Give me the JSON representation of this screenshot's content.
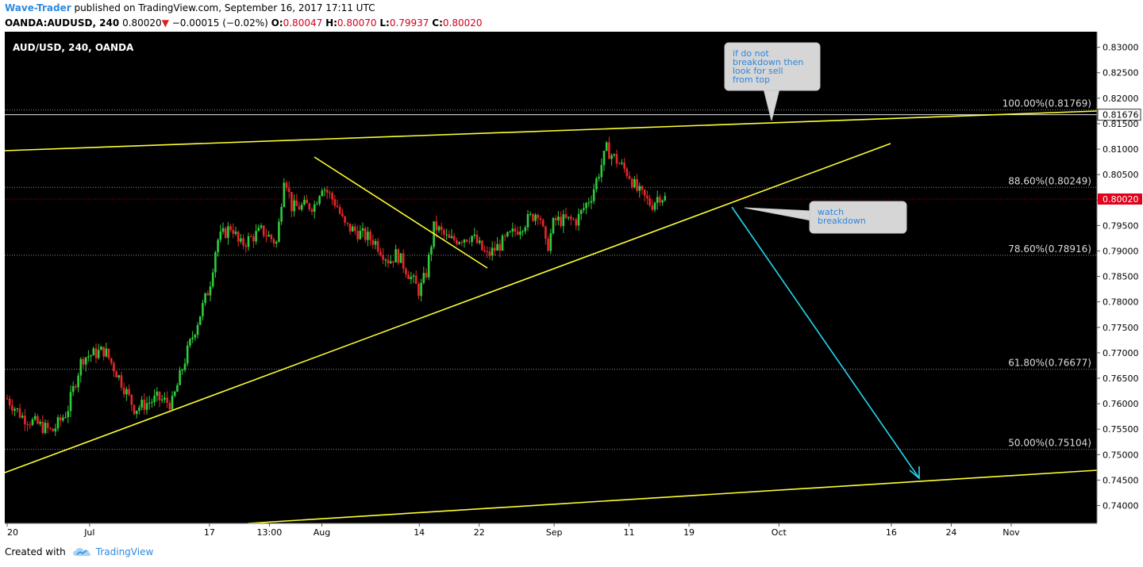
{
  "header": {
    "author": "Wave-Trader",
    "published": "published on TradingView.com, September 16, 2017 17:11 UTC",
    "symbol": "OANDA:AUDUSD, 240",
    "last": "0.80020",
    "arrow": "▼",
    "change": "−0.00015 (−0.02%)",
    "o_label": "O:",
    "o_value": "0.80047",
    "h_label": "H:",
    "h_value": "0.80070",
    "l_label": "L:",
    "l_value": "0.79937",
    "c_label": "C:",
    "c_value": "0.80020"
  },
  "footer": {
    "created_with": "Created with",
    "brand": "TradingView"
  },
  "chart_data": {
    "type": "candlestick",
    "title": "AUD/USD, 240, OANDA",
    "ylim": [
      0.7365,
      0.8315
    ],
    "y_ticks": [
      "0.83000",
      "0.82500",
      "0.82000",
      "0.81500",
      "0.81000",
      "0.80500",
      "0.80000",
      "0.79500",
      "0.79000",
      "0.78500",
      "0.78000",
      "0.77500",
      "0.77000",
      "0.76500",
      "0.76000",
      "0.75500",
      "0.75000",
      "0.74500",
      "0.74000"
    ],
    "x_ticks": [
      "20",
      "Jul",
      "17",
      "13:00",
      "Aug",
      "14",
      "22",
      "Sep",
      "11",
      "19",
      "Oct",
      "16",
      "24",
      "Nov"
    ],
    "last_price_label": "0.80020",
    "upper_level_label": "0.81676",
    "fib_levels": [
      {
        "label": "100.00%(0.81769)",
        "price": 0.81769
      },
      {
        "label": "88.60%(0.80249)",
        "price": 0.80249
      },
      {
        "label": "78.60%(0.78916)",
        "price": 0.78916
      },
      {
        "label": "61.80%(0.76677)",
        "price": 0.76677
      },
      {
        "label": "50.00%(0.75104)",
        "price": 0.75104
      }
    ],
    "callouts": [
      {
        "text": "if do not breakdown then look for sell from top"
      },
      {
        "text": "watch breakdown"
      }
    ],
    "price_path": [
      [
        "Jun 20",
        0.761
      ],
      [
        "Jun 22",
        0.7575
      ],
      [
        "Jun 26",
        0.7545
      ],
      [
        "Jun 28",
        0.7585
      ],
      [
        "Jun 30",
        0.769
      ],
      [
        "Jul 3",
        0.7705
      ],
      [
        "Jul 5",
        0.765
      ],
      [
        "Jul 7",
        0.759
      ],
      [
        "Jul 10",
        0.761
      ],
      [
        "Jul 12",
        0.76
      ],
      [
        "Jul 14",
        0.77
      ],
      [
        "Jul 17",
        0.783
      ],
      [
        "Jul 18",
        0.792
      ],
      [
        "Jul 20",
        0.795
      ],
      [
        "Jul 21",
        0.791
      ],
      [
        "Jul 24",
        0.794
      ],
      [
        "Jul 26",
        0.7915
      ],
      [
        "Jul 27",
        0.8055
      ],
      [
        "Jul 28",
        0.7985
      ],
      [
        "Jul 31",
        0.799
      ],
      [
        "Aug 1",
        0.803
      ],
      [
        "Aug 3",
        0.799
      ],
      [
        "Aug 4",
        0.795
      ],
      [
        "Aug 8",
        0.792
      ],
      [
        "Aug 10",
        0.788
      ],
      [
        "Aug 11",
        0.7895
      ],
      [
        "Aug 14",
        0.782
      ],
      [
        "Aug 15",
        0.786
      ],
      [
        "Aug 16",
        0.795
      ],
      [
        "Aug 18",
        0.792
      ],
      [
        "Aug 21",
        0.793
      ],
      [
        "Aug 23",
        0.789
      ],
      [
        "Aug 25",
        0.7915
      ],
      [
        "Aug 28",
        0.7955
      ],
      [
        "Aug 30",
        0.798
      ],
      [
        "Aug 31",
        0.79
      ],
      [
        "Sep 1",
        0.796
      ],
      [
        "Sep 4",
        0.796
      ],
      [
        "Sep 6",
        0.801
      ],
      [
        "Sep 8",
        0.81
      ],
      [
        "Sep 11",
        0.805
      ],
      [
        "Sep 12",
        0.802
      ],
      [
        "Sep 14",
        0.799
      ],
      [
        "Sep 15",
        0.801
      ],
      [
        "Sep 16",
        0.8002
      ]
    ]
  }
}
